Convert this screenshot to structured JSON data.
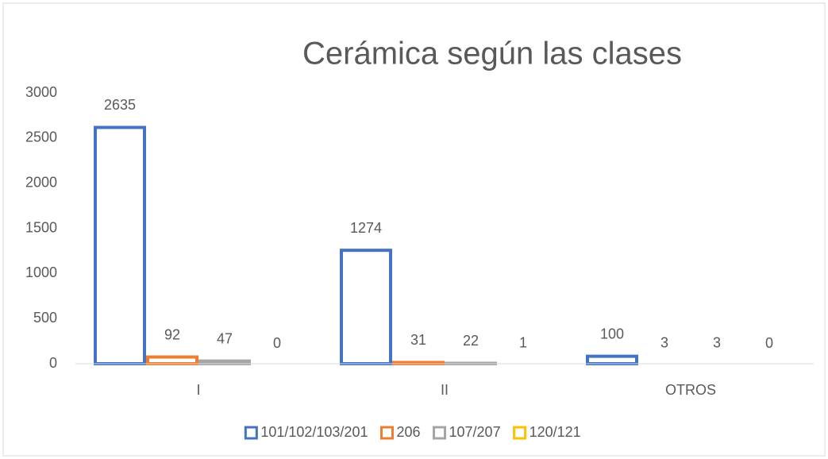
{
  "chart_data": {
    "type": "bar",
    "title": "Cerámica según las clases",
    "categories": [
      "I",
      "II",
      "OTROS"
    ],
    "series": [
      {
        "name": "101/102/103/201",
        "color": "#4472c4",
        "values": [
          2635,
          1274,
          100
        ]
      },
      {
        "name": "206",
        "color": "#ed7d31",
        "values": [
          92,
          31,
          3
        ]
      },
      {
        "name": "107/207",
        "color": "#a5a5a5",
        "values": [
          47,
          22,
          3
        ]
      },
      {
        "name": "120/121",
        "color": "#ffc000",
        "values": [
          0,
          1,
          0
        ]
      }
    ],
    "ylim": [
      0,
      3000
    ],
    "yticks": [
      0,
      500,
      1000,
      1500,
      2000,
      2500,
      3000
    ],
    "grid": false,
    "legend": "bottom"
  }
}
